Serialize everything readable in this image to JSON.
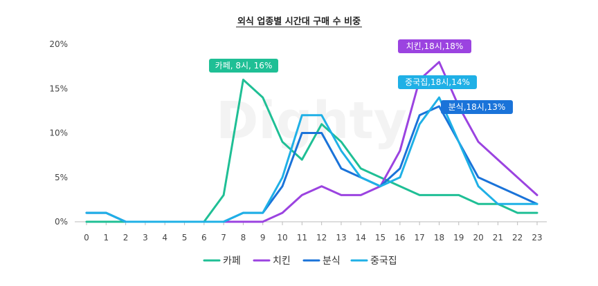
{
  "chart_data": {
    "type": "line",
    "title": "외식 업종별 시간대 구매 수 비중",
    "watermark": "Dighty",
    "x": [
      0,
      1,
      2,
      3,
      4,
      5,
      6,
      7,
      8,
      9,
      10,
      11,
      12,
      13,
      14,
      15,
      16,
      17,
      18,
      19,
      20,
      21,
      22,
      23
    ],
    "xlim": [
      0,
      23
    ],
    "ylim": [
      0,
      20
    ],
    "yticks": [
      0,
      5,
      10,
      15,
      20
    ],
    "ytick_labels": [
      "0%",
      "5%",
      "10%",
      "15%",
      "20%"
    ],
    "legend_position": "bottom",
    "grid": false,
    "series": [
      {
        "name": "카페",
        "color": "#1fbf95",
        "values": [
          0,
          0,
          0,
          0,
          0,
          0,
          0,
          3,
          16,
          14,
          9,
          7,
          11,
          9,
          6,
          5,
          4,
          3,
          3,
          3,
          2,
          2,
          1,
          1
        ]
      },
      {
        "name": "치킨",
        "color": "#9b43e0",
        "values": [
          1,
          1,
          0,
          0,
          0,
          0,
          0,
          0,
          0,
          0,
          1,
          3,
          4,
          3,
          3,
          4,
          8,
          16,
          18,
          13,
          9,
          7,
          5,
          3
        ]
      },
      {
        "name": "분식",
        "color": "#1a73d9",
        "values": [
          1,
          1,
          0,
          0,
          0,
          0,
          0,
          0,
          1,
          1,
          4,
          10,
          10,
          6,
          5,
          4,
          6,
          12,
          13,
          9,
          5,
          4,
          3,
          2
        ]
      },
      {
        "name": "중국집",
        "color": "#1fb0e6",
        "values": [
          1,
          1,
          0,
          0,
          0,
          0,
          0,
          0,
          1,
          1,
          5,
          12,
          12,
          8,
          5,
          4,
          5,
          11,
          14,
          9,
          4,
          2,
          2,
          2
        ]
      }
    ],
    "annotations": [
      {
        "text": "카페, 8시, 16%",
        "color": "#1fbf95"
      },
      {
        "text": "치킨,18시,18%",
        "color": "#9b43e0"
      },
      {
        "text": "중국집,18시,14%",
        "color": "#1fb0e6"
      },
      {
        "text": "분식,18시,13%",
        "color": "#1a73d9"
      }
    ]
  }
}
